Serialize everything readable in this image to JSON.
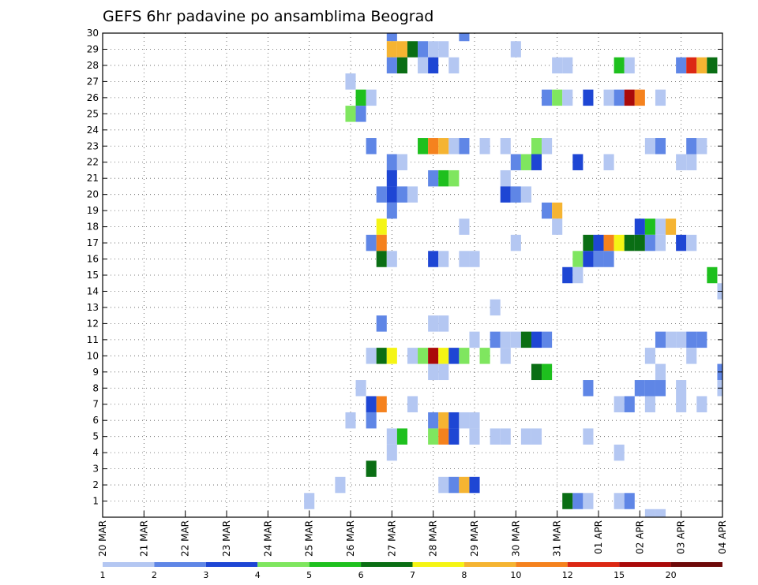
{
  "chart_data": {
    "type": "heatmap",
    "title": "GEFS 6hr padavine po ansamblima Beograd",
    "xlabel": "",
    "ylabel": "",
    "x_tick_labels": [
      "20 MAR",
      "21 MAR",
      "22 MAR",
      "23 MAR",
      "24 MAR",
      "25 MAR",
      "26 MAR",
      "27 MAR",
      "28 MAR",
      "29 MAR",
      "30 MAR",
      "31 MAR",
      "01 APR",
      "02 APR",
      "03 APR",
      "04 APR"
    ],
    "x_steps_per_day": 4,
    "x_range_steps": [
      0,
      60
    ],
    "y_tick_labels": [
      "1",
      "2",
      "3",
      "4",
      "5",
      "6",
      "7",
      "8",
      "9",
      "10",
      "11",
      "12",
      "13",
      "14",
      "15",
      "16",
      "17",
      "18",
      "19",
      "20",
      "21",
      "22",
      "23",
      "24",
      "25",
      "26",
      "27",
      "28",
      "29",
      "30"
    ],
    "y_range": [
      0,
      30
    ],
    "grid": true,
    "colorbar": {
      "labels": [
        "1",
        "2",
        "3",
        "4",
        "5",
        "6",
        "7",
        "8",
        "10",
        "12",
        "15",
        "20"
      ],
      "colors": [
        "#b4c7f2",
        "#5f86e6",
        "#1e46d4",
        "#7fe65f",
        "#1ec01e",
        "#0a6e14",
        "#f5f514",
        "#f5b432",
        "#f5821e",
        "#dc2814",
        "#aa0a0a",
        "#6e0a0a"
      ]
    },
    "cells": [
      {
        "t": 28,
        "m": 30,
        "c": 1
      },
      {
        "t": 35,
        "m": 30,
        "c": 1
      },
      {
        "t": 28,
        "m": 29,
        "c": 7
      },
      {
        "t": 29,
        "m": 29,
        "c": 7
      },
      {
        "t": 30,
        "m": 29,
        "c": 5
      },
      {
        "t": 31,
        "m": 29,
        "c": 1
      },
      {
        "t": 32,
        "m": 29,
        "c": 0
      },
      {
        "t": 33,
        "m": 29,
        "c": 0
      },
      {
        "t": 40,
        "m": 29,
        "c": 0
      },
      {
        "t": 28,
        "m": 28,
        "c": 1
      },
      {
        "t": 29,
        "m": 28,
        "c": 5
      },
      {
        "t": 31,
        "m": 28,
        "c": 0
      },
      {
        "t": 32,
        "m": 28,
        "c": 2
      },
      {
        "t": 34,
        "m": 28,
        "c": 0
      },
      {
        "t": 44,
        "m": 28,
        "c": 0
      },
      {
        "t": 45,
        "m": 28,
        "c": 0
      },
      {
        "t": 50,
        "m": 28,
        "c": 4
      },
      {
        "t": 51,
        "m": 28,
        "c": 0
      },
      {
        "t": 56,
        "m": 28,
        "c": 1
      },
      {
        "t": 57,
        "m": 28,
        "c": 9
      },
      {
        "t": 58,
        "m": 28,
        "c": 7
      },
      {
        "t": 59,
        "m": 28,
        "c": 5
      },
      {
        "t": 24,
        "m": 27,
        "c": 0
      },
      {
        "t": 25,
        "m": 26,
        "c": 4
      },
      {
        "t": 26,
        "m": 26,
        "c": 0
      },
      {
        "t": 43,
        "m": 26,
        "c": 1
      },
      {
        "t": 44,
        "m": 26,
        "c": 3
      },
      {
        "t": 45,
        "m": 26,
        "c": 0
      },
      {
        "t": 47,
        "m": 26,
        "c": 2
      },
      {
        "t": 49,
        "m": 26,
        "c": 0
      },
      {
        "t": 50,
        "m": 26,
        "c": 1
      },
      {
        "t": 51,
        "m": 26,
        "c": 10
      },
      {
        "t": 52,
        "m": 26,
        "c": 8
      },
      {
        "t": 54,
        "m": 26,
        "c": 0
      },
      {
        "t": 24,
        "m": 25,
        "c": 3
      },
      {
        "t": 25,
        "m": 25,
        "c": 1
      },
      {
        "t": 26,
        "m": 23,
        "c": 1
      },
      {
        "t": 31,
        "m": 23,
        "c": 4
      },
      {
        "t": 32,
        "m": 23,
        "c": 8
      },
      {
        "t": 33,
        "m": 23,
        "c": 7
      },
      {
        "t": 34,
        "m": 23,
        "c": 0
      },
      {
        "t": 35,
        "m": 23,
        "c": 1
      },
      {
        "t": 37,
        "m": 23,
        "c": 0
      },
      {
        "t": 39,
        "m": 23,
        "c": 0
      },
      {
        "t": 42,
        "m": 23,
        "c": 3
      },
      {
        "t": 43,
        "m": 23,
        "c": 0
      },
      {
        "t": 53,
        "m": 23,
        "c": 0
      },
      {
        "t": 54,
        "m": 23,
        "c": 1
      },
      {
        "t": 57,
        "m": 23,
        "c": 1
      },
      {
        "t": 58,
        "m": 23,
        "c": 0
      },
      {
        "t": 28,
        "m": 22,
        "c": 1
      },
      {
        "t": 29,
        "m": 22,
        "c": 0
      },
      {
        "t": 40,
        "m": 22,
        "c": 1
      },
      {
        "t": 41,
        "m": 22,
        "c": 3
      },
      {
        "t": 42,
        "m": 22,
        "c": 2
      },
      {
        "t": 46,
        "m": 22,
        "c": 2
      },
      {
        "t": 49,
        "m": 22,
        "c": 0
      },
      {
        "t": 56,
        "m": 22,
        "c": 0
      },
      {
        "t": 57,
        "m": 22,
        "c": 0
      },
      {
        "t": 28,
        "m": 21,
        "c": 2
      },
      {
        "t": 32,
        "m": 21,
        "c": 1
      },
      {
        "t": 33,
        "m": 21,
        "c": 4
      },
      {
        "t": 34,
        "m": 21,
        "c": 3
      },
      {
        "t": 39,
        "m": 21,
        "c": 0
      },
      {
        "t": 27,
        "m": 20,
        "c": 1
      },
      {
        "t": 28,
        "m": 20,
        "c": 2
      },
      {
        "t": 29,
        "m": 20,
        "c": 1
      },
      {
        "t": 30,
        "m": 20,
        "c": 0
      },
      {
        "t": 39,
        "m": 20,
        "c": 2
      },
      {
        "t": 40,
        "m": 20,
        "c": 1
      },
      {
        "t": 41,
        "m": 20,
        "c": 0
      },
      {
        "t": 28,
        "m": 19,
        "c": 1
      },
      {
        "t": 43,
        "m": 19,
        "c": 1
      },
      {
        "t": 44,
        "m": 19,
        "c": 7
      },
      {
        "t": 27,
        "m": 18,
        "c": 6
      },
      {
        "t": 35,
        "m": 18,
        "c": 0
      },
      {
        "t": 44,
        "m": 18,
        "c": 0
      },
      {
        "t": 52,
        "m": 18,
        "c": 2
      },
      {
        "t": 53,
        "m": 18,
        "c": 4
      },
      {
        "t": 54,
        "m": 18,
        "c": 0
      },
      {
        "t": 55,
        "m": 18,
        "c": 7
      },
      {
        "t": 26,
        "m": 17,
        "c": 1
      },
      {
        "t": 27,
        "m": 17,
        "c": 8
      },
      {
        "t": 40,
        "m": 17,
        "c": 0
      },
      {
        "t": 47,
        "m": 17,
        "c": 5
      },
      {
        "t": 48,
        "m": 17,
        "c": 2
      },
      {
        "t": 49,
        "m": 17,
        "c": 8
      },
      {
        "t": 50,
        "m": 17,
        "c": 6
      },
      {
        "t": 51,
        "m": 17,
        "c": 5
      },
      {
        "t": 52,
        "m": 17,
        "c": 5
      },
      {
        "t": 53,
        "m": 17,
        "c": 1
      },
      {
        "t": 54,
        "m": 17,
        "c": 0
      },
      {
        "t": 56,
        "m": 17,
        "c": 2
      },
      {
        "t": 57,
        "m": 17,
        "c": 0
      },
      {
        "t": 27,
        "m": 16,
        "c": 5
      },
      {
        "t": 28,
        "m": 16,
        "c": 0
      },
      {
        "t": 32,
        "m": 16,
        "c": 2
      },
      {
        "t": 33,
        "m": 16,
        "c": 0
      },
      {
        "t": 35,
        "m": 16,
        "c": 0
      },
      {
        "t": 36,
        "m": 16,
        "c": 0
      },
      {
        "t": 46,
        "m": 16,
        "c": 3
      },
      {
        "t": 47,
        "m": 16,
        "c": 2
      },
      {
        "t": 48,
        "m": 16,
        "c": 1
      },
      {
        "t": 49,
        "m": 16,
        "c": 1
      },
      {
        "t": 45,
        "m": 15,
        "c": 2
      },
      {
        "t": 46,
        "m": 15,
        "c": 0
      },
      {
        "t": 59,
        "m": 15,
        "c": 4
      },
      {
        "t": 60,
        "m": 14,
        "c": 0
      },
      {
        "t": 38,
        "m": 13,
        "c": 0
      },
      {
        "t": 27,
        "m": 12,
        "c": 1
      },
      {
        "t": 32,
        "m": 12,
        "c": 0
      },
      {
        "t": 33,
        "m": 12,
        "c": 0
      },
      {
        "t": 36,
        "m": 11,
        "c": 0
      },
      {
        "t": 38,
        "m": 11,
        "c": 1
      },
      {
        "t": 39,
        "m": 11,
        "c": 0
      },
      {
        "t": 40,
        "m": 11,
        "c": 0
      },
      {
        "t": 41,
        "m": 11,
        "c": 5
      },
      {
        "t": 42,
        "m": 11,
        "c": 2
      },
      {
        "t": 43,
        "m": 11,
        "c": 1
      },
      {
        "t": 54,
        "m": 11,
        "c": 1
      },
      {
        "t": 55,
        "m": 11,
        "c": 0
      },
      {
        "t": 56,
        "m": 11,
        "c": 0
      },
      {
        "t": 57,
        "m": 11,
        "c": 1
      },
      {
        "t": 58,
        "m": 11,
        "c": 1
      },
      {
        "t": 26,
        "m": 10,
        "c": 0
      },
      {
        "t": 27,
        "m": 10,
        "c": 5
      },
      {
        "t": 28,
        "m": 10,
        "c": 6
      },
      {
        "t": 30,
        "m": 10,
        "c": 0
      },
      {
        "t": 31,
        "m": 10,
        "c": 3
      },
      {
        "t": 32,
        "m": 10,
        "c": 10
      },
      {
        "t": 33,
        "m": 10,
        "c": 6
      },
      {
        "t": 34,
        "m": 10,
        "c": 2
      },
      {
        "t": 35,
        "m": 10,
        "c": 3
      },
      {
        "t": 37,
        "m": 10,
        "c": 3
      },
      {
        "t": 39,
        "m": 10,
        "c": 0
      },
      {
        "t": 53,
        "m": 10,
        "c": 0
      },
      {
        "t": 57,
        "m": 10,
        "c": 0
      },
      {
        "t": 32,
        "m": 9,
        "c": 0
      },
      {
        "t": 33,
        "m": 9,
        "c": 0
      },
      {
        "t": 42,
        "m": 9,
        "c": 5
      },
      {
        "t": 43,
        "m": 9,
        "c": 4
      },
      {
        "t": 54,
        "m": 9,
        "c": 0
      },
      {
        "t": 60,
        "m": 9,
        "c": 1
      },
      {
        "t": 25,
        "m": 8,
        "c": 0
      },
      {
        "t": 47,
        "m": 8,
        "c": 1
      },
      {
        "t": 52,
        "m": 8,
        "c": 1
      },
      {
        "t": 53,
        "m": 8,
        "c": 1
      },
      {
        "t": 54,
        "m": 8,
        "c": 1
      },
      {
        "t": 56,
        "m": 8,
        "c": 0
      },
      {
        "t": 60,
        "m": 8,
        "c": 0
      },
      {
        "t": 26,
        "m": 7,
        "c": 2
      },
      {
        "t": 27,
        "m": 7,
        "c": 8
      },
      {
        "t": 30,
        "m": 7,
        "c": 0
      },
      {
        "t": 50,
        "m": 7,
        "c": 0
      },
      {
        "t": 51,
        "m": 7,
        "c": 1
      },
      {
        "t": 53,
        "m": 7,
        "c": 0
      },
      {
        "t": 56,
        "m": 7,
        "c": 0
      },
      {
        "t": 58,
        "m": 7,
        "c": 0
      },
      {
        "t": 24,
        "m": 6,
        "c": 0
      },
      {
        "t": 26,
        "m": 6,
        "c": 1
      },
      {
        "t": 32,
        "m": 6,
        "c": 1
      },
      {
        "t": 33,
        "m": 6,
        "c": 7
      },
      {
        "t": 34,
        "m": 6,
        "c": 2
      },
      {
        "t": 35,
        "m": 6,
        "c": 0
      },
      {
        "t": 36,
        "m": 6,
        "c": 0
      },
      {
        "t": 28,
        "m": 5,
        "c": 0
      },
      {
        "t": 29,
        "m": 5,
        "c": 4
      },
      {
        "t": 32,
        "m": 5,
        "c": 3
      },
      {
        "t": 33,
        "m": 5,
        "c": 8
      },
      {
        "t": 34,
        "m": 5,
        "c": 2
      },
      {
        "t": 36,
        "m": 5,
        "c": 0
      },
      {
        "t": 38,
        "m": 5,
        "c": 0
      },
      {
        "t": 39,
        "m": 5,
        "c": 0
      },
      {
        "t": 41,
        "m": 5,
        "c": 0
      },
      {
        "t": 42,
        "m": 5,
        "c": 0
      },
      {
        "t": 47,
        "m": 5,
        "c": 0
      },
      {
        "t": 28,
        "m": 4,
        "c": 0
      },
      {
        "t": 50,
        "m": 4,
        "c": 0
      },
      {
        "t": 26,
        "m": 3,
        "c": 5
      },
      {
        "t": 23,
        "m": 2,
        "c": 0
      },
      {
        "t": 33,
        "m": 2,
        "c": 0
      },
      {
        "t": 34,
        "m": 2,
        "c": 1
      },
      {
        "t": 35,
        "m": 2,
        "c": 7
      },
      {
        "t": 36,
        "m": 2,
        "c": 2
      },
      {
        "t": 20,
        "m": 1,
        "c": 0
      },
      {
        "t": 45,
        "m": 1,
        "c": 5
      },
      {
        "t": 46,
        "m": 1,
        "c": 1
      },
      {
        "t": 47,
        "m": 1,
        "c": 0
      },
      {
        "t": 50,
        "m": 1,
        "c": 0
      },
      {
        "t": 51,
        "m": 1,
        "c": 1
      },
      {
        "t": 53,
        "m": 0,
        "c": 0
      },
      {
        "t": 54,
        "m": 0,
        "c": 0
      }
    ]
  }
}
